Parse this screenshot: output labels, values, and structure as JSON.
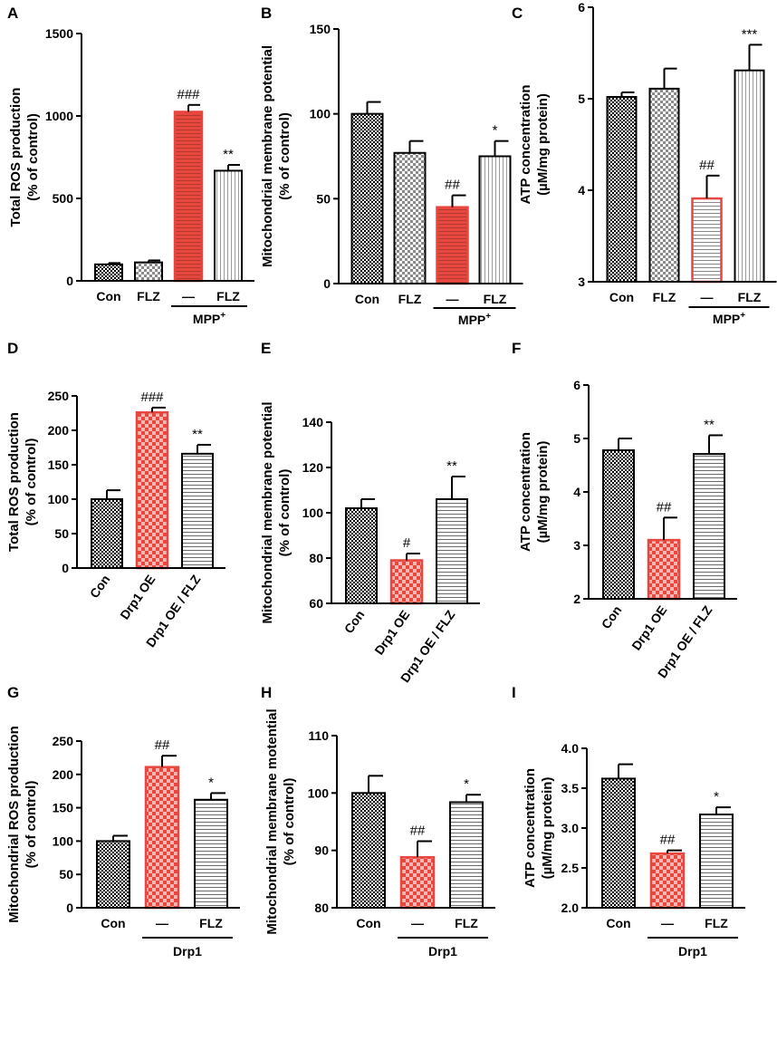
{
  "colors": {
    "black": "#000000",
    "red": "#e8473f",
    "white": "#ffffff"
  },
  "chart_data": [
    {
      "panel": "A",
      "type": "bar",
      "ylabel": [
        "Total ROS production",
        "(% of control)"
      ],
      "ylim": [
        0,
        1500
      ],
      "yticks": [
        0,
        500,
        1000,
        1500
      ],
      "categories": [
        "Con",
        "FLZ",
        "—",
        "FLZ"
      ],
      "values": [
        100,
        112,
        1025,
        668
      ],
      "errors": [
        8,
        12,
        42,
        35
      ],
      "patterns": [
        "check",
        "grayCheck",
        "redH",
        "vert"
      ],
      "sig": [
        "",
        "",
        "###",
        "**"
      ],
      "group": {
        "label": "MPP",
        "sup": "+",
        "from": 2,
        "to": 3
      }
    },
    {
      "panel": "B",
      "type": "bar",
      "ylabel": [
        "Mitochondrial membrane potential",
        "(% of control)"
      ],
      "ylim": [
        0,
        150
      ],
      "yticks": [
        0,
        50,
        100,
        150
      ],
      "categories": [
        "Con",
        "FLZ",
        "—",
        "FLZ"
      ],
      "values": [
        100,
        77,
        45,
        75
      ],
      "errors": [
        7,
        7,
        7,
        9
      ],
      "patterns": [
        "check",
        "grayCheck",
        "redH",
        "vert"
      ],
      "sig": [
        "",
        "",
        "##",
        "*"
      ],
      "group": {
        "label": "MPP",
        "sup": "+",
        "from": 2,
        "to": 3
      }
    },
    {
      "panel": "C",
      "type": "bar",
      "ylabel": [
        "ATP concentration",
        "(µM/mg protein)"
      ],
      "ylim": [
        3,
        6
      ],
      "yticks": [
        3,
        4,
        5,
        6
      ],
      "categories": [
        "Con",
        "FLZ",
        "—",
        "FLZ"
      ],
      "values": [
        5.02,
        5.11,
        3.91,
        5.31
      ],
      "errors": [
        0.05,
        0.22,
        0.25,
        0.28
      ],
      "patterns": [
        "check",
        "grayCheck",
        "redHOutline",
        "vert"
      ],
      "sig": [
        "",
        "",
        "##",
        "***"
      ],
      "group": {
        "label": "MPP",
        "sup": "+",
        "from": 2,
        "to": 3
      }
    },
    {
      "panel": "D",
      "type": "bar",
      "ylabel": [
        "Total ROS production",
        "(% of control)"
      ],
      "ylim": [
        0,
        250
      ],
      "yticks": [
        0,
        50,
        100,
        150,
        200,
        250
      ],
      "categories": [
        "Con",
        "Drp1 OE",
        "Drp1 OE / FLZ"
      ],
      "values": [
        100,
        226,
        166
      ],
      "errors": [
        13,
        7,
        13
      ],
      "patterns": [
        "check",
        "redCheck",
        "horiz"
      ],
      "sig": [
        "",
        "###",
        "**"
      ],
      "group": null
    },
    {
      "panel": "E",
      "type": "bar",
      "ylabel": [
        "Mitochondrial membrane potential",
        "(% of control)"
      ],
      "ylim": [
        60,
        140
      ],
      "yticks": [
        60,
        80,
        100,
        120,
        140
      ],
      "categories": [
        "Con",
        "Drp1 OE",
        "Drp1 OE / FLZ"
      ],
      "values": [
        102,
        79,
        106
      ],
      "errors": [
        4,
        3,
        10
      ],
      "patterns": [
        "check",
        "redCheck",
        "horiz"
      ],
      "sig": [
        "",
        "#",
        "**"
      ],
      "group": null
    },
    {
      "panel": "F",
      "type": "bar",
      "ylabel": [
        "ATP concentration",
        "(µM/mg protein)"
      ],
      "ylim": [
        2,
        6
      ],
      "yticks": [
        2,
        3,
        4,
        5,
        6
      ],
      "categories": [
        "Con",
        "Drp1 OE",
        "Drp1 OE / FLZ"
      ],
      "values": [
        4.78,
        3.1,
        4.71
      ],
      "errors": [
        0.22,
        0.42,
        0.35
      ],
      "patterns": [
        "check",
        "redCheck",
        "horiz"
      ],
      "sig": [
        "",
        "##",
        "**"
      ],
      "group": null
    },
    {
      "panel": "G",
      "type": "bar",
      "ylabel": [
        "Mitochondrial ROS production",
        "(% of control)"
      ],
      "ylim": [
        0,
        250
      ],
      "yticks": [
        0,
        50,
        100,
        150,
        200,
        250
      ],
      "categories": [
        "Con",
        "—",
        "FLZ"
      ],
      "values": [
        100,
        211,
        162
      ],
      "errors": [
        8,
        17,
        10
      ],
      "patterns": [
        "check",
        "redCheck",
        "horiz"
      ],
      "sig": [
        "",
        "##",
        "*"
      ],
      "group": {
        "label": "Drp1",
        "sup": "",
        "from": 1,
        "to": 2
      }
    },
    {
      "panel": "H",
      "type": "bar",
      "ylabel": [
        "Mitochondrial membrane motential",
        "(% of control)"
      ],
      "ylim": [
        80,
        110
      ],
      "yticks": [
        80,
        90,
        100,
        110
      ],
      "categories": [
        "Con",
        "—",
        "FLZ"
      ],
      "values": [
        100,
        88.8,
        98.4
      ],
      "errors": [
        3,
        2.8,
        1.3
      ],
      "patterns": [
        "check",
        "redCheck",
        "horiz"
      ],
      "sig": [
        "",
        "##",
        "*"
      ],
      "group": {
        "label": "Drp1",
        "sup": "",
        "from": 1,
        "to": 2
      }
    },
    {
      "panel": "I",
      "type": "bar",
      "ylabel": [
        "ATP concentration",
        "(µM/mg protein)"
      ],
      "ylim": [
        2.0,
        4.0
      ],
      "yticks": [
        "2.0",
        "2.5",
        "3.0",
        "3.5",
        "4.0"
      ],
      "categories": [
        "Con",
        "—",
        "FLZ"
      ],
      "values": [
        3.62,
        2.68,
        3.17
      ],
      "errors": [
        0.18,
        0.04,
        0.09
      ],
      "patterns": [
        "check",
        "redCheck",
        "horiz"
      ],
      "sig": [
        "",
        "##",
        "*"
      ],
      "group": {
        "label": "Drp1",
        "sup": "",
        "from": 1,
        "to": 2
      }
    }
  ]
}
